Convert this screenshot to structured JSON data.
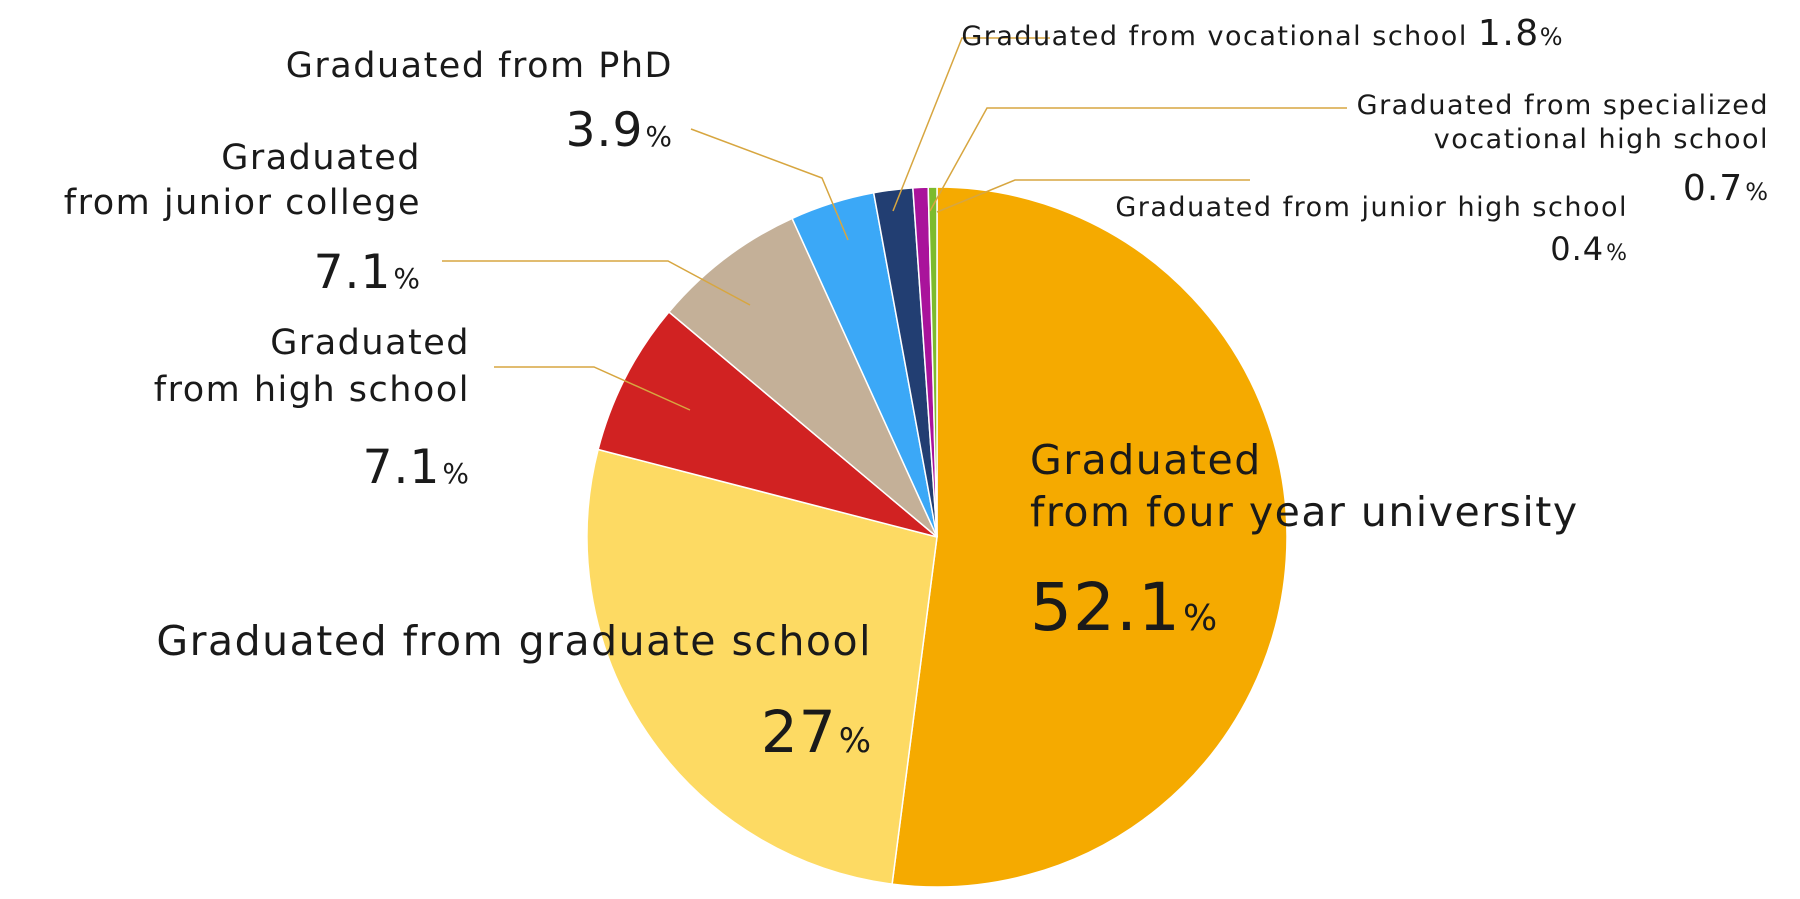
{
  "chart_data": {
    "type": "pie",
    "start": "top",
    "direction": "clockwise",
    "slices": [
      {
        "lines": [
          "Graduated",
          "from four year university"
        ],
        "value": 52.1,
        "value_text": "52.1",
        "unit": "%",
        "color": "#F5AA00"
      },
      {
        "lines": [
          "Graduated from graduate school"
        ],
        "value": 27,
        "value_text": "27",
        "unit": "%",
        "color": "#FDDA63"
      },
      {
        "lines": [
          "Graduated",
          "from high school"
        ],
        "value": 7.1,
        "value_text": "7.1",
        "unit": "%",
        "color": "#D12222"
      },
      {
        "lines": [
          "Graduated",
          "from junior college"
        ],
        "value": 7.1,
        "value_text": "7.1",
        "unit": "%",
        "color": "#C4B098"
      },
      {
        "lines": [
          "Graduated from PhD"
        ],
        "value": 3.9,
        "value_text": "3.9",
        "unit": "%",
        "color": "#3BA8F7"
      },
      {
        "lines": [
          "Graduated from vocational school"
        ],
        "value": 1.8,
        "value_text": "1.8",
        "unit": "%",
        "color": "#223E72"
      },
      {
        "lines": [
          "Graduated from specialized",
          "vocational high school"
        ],
        "value": 0.7,
        "value_text": "0.7",
        "unit": "%",
        "color": "#A9139B"
      },
      {
        "lines": [
          "Graduated from junior high school"
        ],
        "value": 0.4,
        "value_text": "0.4",
        "unit": "%",
        "color": "#7DBB2D"
      }
    ]
  }
}
